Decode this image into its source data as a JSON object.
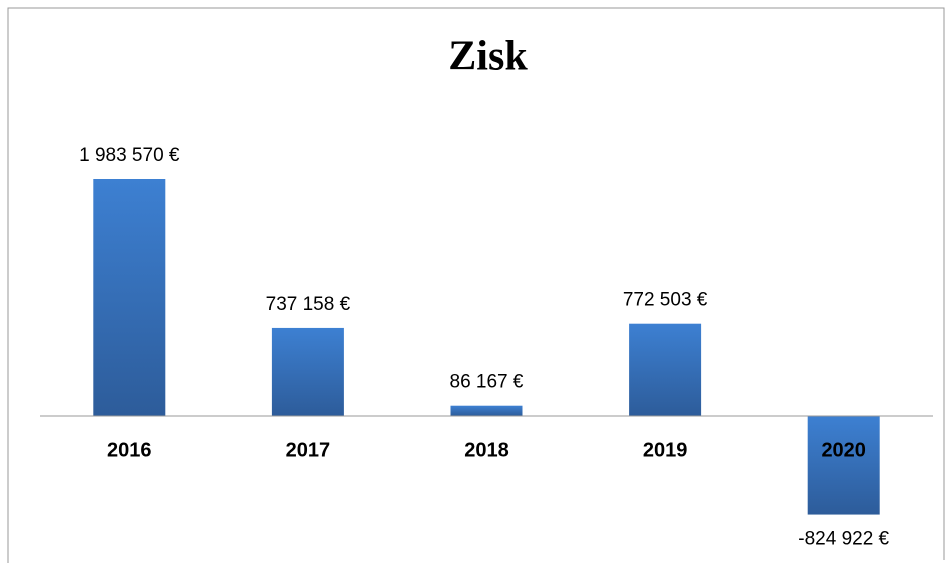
{
  "chart_data": {
    "type": "bar",
    "title": "Zisk",
    "categories": [
      "2016",
      "2017",
      "2018",
      "2019",
      "2020"
    ],
    "values": [
      1983570,
      737158,
      86167,
      772503,
      -824922
    ],
    "value_labels": [
      "1 983 570 €",
      "737 158 €",
      "86 167 €",
      "772 503 €",
      "-824 922 €"
    ],
    "color": "#3a78c8"
  }
}
